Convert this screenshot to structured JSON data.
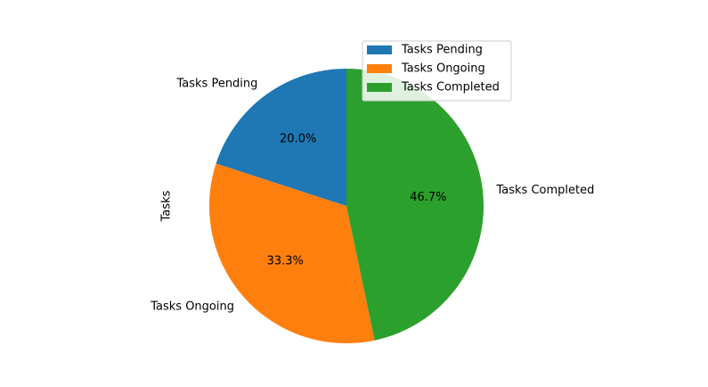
{
  "chart_data": {
    "type": "pie",
    "ylabel": "Tasks",
    "start_angle_deg": 90,
    "direction": "counterclockwise",
    "legend_position": "top-right",
    "slices": [
      {
        "label": "Tasks Pending",
        "value": 20.0,
        "pct_label": "20.0%",
        "color": "#1f77b4"
      },
      {
        "label": "Tasks Ongoing",
        "value": 33.3,
        "pct_label": "33.3%",
        "color": "#ff7f0e"
      },
      {
        "label": "Tasks Completed",
        "value": 46.7,
        "pct_label": "46.7%",
        "color": "#2ca02c"
      }
    ]
  }
}
